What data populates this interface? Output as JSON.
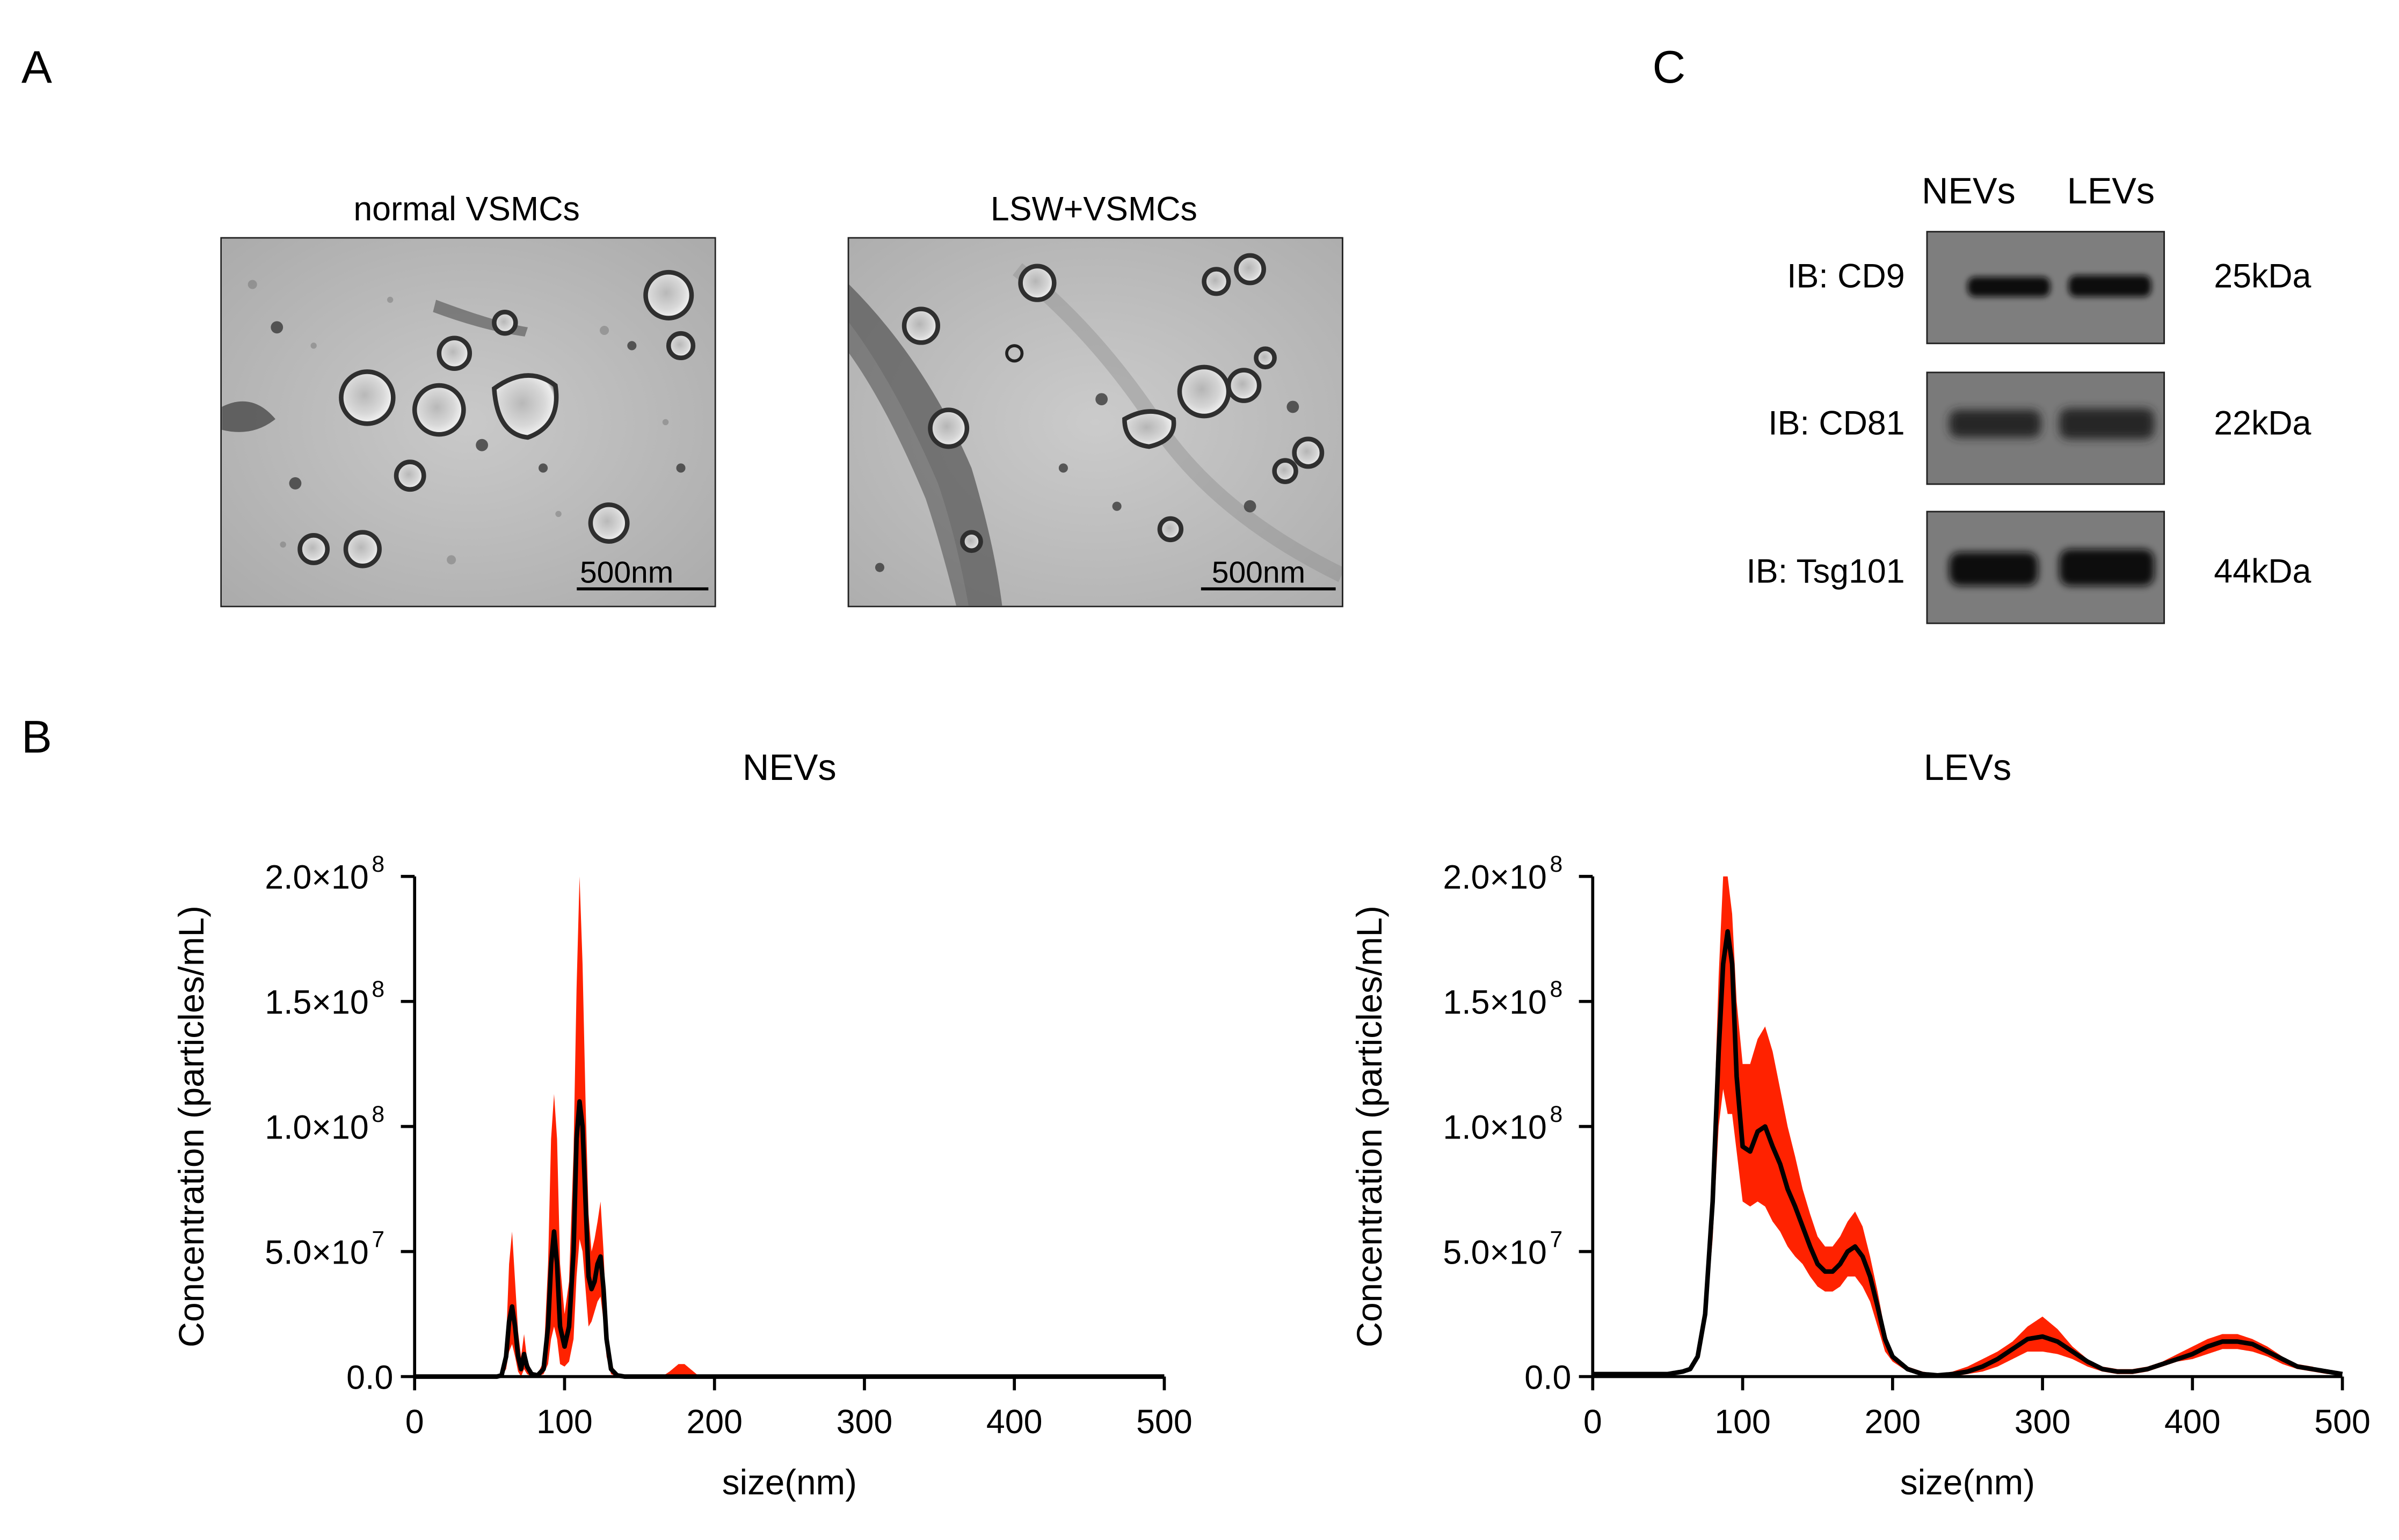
{
  "panels": {
    "a": "A",
    "b": "B",
    "c": "C"
  },
  "em": {
    "left_title": "normal VSMCs",
    "right_title": "LSW+VSMCs",
    "left_scale": "500nm",
    "right_scale": "500nm"
  },
  "western": {
    "columns": [
      "NEVs",
      "LEVs"
    ],
    "rows": [
      {
        "label": "IB: CD9",
        "kda": "25kDa"
      },
      {
        "label": "IB: CD81",
        "kda": "22kDa"
      },
      {
        "label": "IB: Tsg101",
        "kda": "44kDa"
      }
    ]
  },
  "colors": {
    "band": "#ff2200",
    "mean_line": "#000000",
    "blot_bg": "#7c7c7c"
  },
  "chart_data": [
    {
      "type": "line",
      "title": "NEVs",
      "xlabel": "size(nm)",
      "ylabel": "Concentration (particles/mL)",
      "xlim": [
        0,
        500
      ],
      "ylim": [
        0,
        200000000
      ],
      "xticks": [
        "0",
        "100",
        "200",
        "300",
        "400",
        "500"
      ],
      "yticks": [
        {
          "mant": "0.0",
          "exp": ""
        },
        {
          "mant": "5.0×10",
          "exp": "7"
        },
        {
          "mant": "1.0×10",
          "exp": "8"
        },
        {
          "mant": "1.5×10",
          "exp": "8"
        },
        {
          "mant": "2.0×10",
          "exp": "8"
        }
      ],
      "series": [
        {
          "name": "mean",
          "x": [
            0,
            55,
            58,
            61,
            63,
            65,
            67,
            69,
            71,
            73,
            75,
            78,
            82,
            86,
            89,
            91,
            93,
            95,
            97,
            100,
            103,
            106,
            108,
            110,
            112,
            114,
            116,
            118,
            120,
            122,
            124,
            126,
            128,
            131,
            135,
            140,
            170,
            180,
            190,
            200,
            300,
            400,
            500
          ],
          "values": [
            0,
            0,
            500000,
            8000000,
            22000000,
            28000000,
            20000000,
            8000000,
            3000000,
            9000000,
            4000000,
            1000000,
            500000,
            3000000,
            20000000,
            45000000,
            58000000,
            45000000,
            20000000,
            12000000,
            20000000,
            50000000,
            95000000,
            110000000,
            100000000,
            70000000,
            40000000,
            35000000,
            38000000,
            45000000,
            48000000,
            35000000,
            15000000,
            3000000,
            500000,
            0,
            0,
            0,
            0,
            0,
            0,
            0,
            0
          ]
        },
        {
          "name": "upper (±SD)",
          "x": [
            0,
            55,
            58,
            61,
            63,
            65,
            67,
            69,
            71,
            73,
            75,
            78,
            82,
            86,
            89,
            91,
            93,
            95,
            97,
            100,
            103,
            106,
            108,
            110,
            112,
            114,
            116,
            118,
            120,
            122,
            124,
            126,
            128,
            131,
            135,
            140,
            165,
            170,
            176,
            180,
            186,
            190,
            200,
            300,
            400,
            500
          ],
          "values": [
            0,
            0,
            1000000,
            14000000,
            45000000,
            58000000,
            38000000,
            18000000,
            8000000,
            17000000,
            7000000,
            2000000,
            1000000,
            6000000,
            45000000,
            95000000,
            113000000,
            95000000,
            45000000,
            25000000,
            38000000,
            90000000,
            155000000,
            200000000,
            165000000,
            110000000,
            65000000,
            50000000,
            55000000,
            62000000,
            70000000,
            50000000,
            22000000,
            5000000,
            1000000,
            0,
            0,
            2000000,
            5000000,
            5000000,
            2000000,
            0,
            0,
            0,
            0,
            0
          ]
        },
        {
          "name": "lower (±SD)",
          "x": [
            0,
            55,
            58,
            61,
            63,
            65,
            67,
            69,
            71,
            73,
            75,
            78,
            82,
            86,
            89,
            91,
            93,
            95,
            97,
            100,
            103,
            106,
            108,
            110,
            112,
            114,
            116,
            118,
            120,
            122,
            124,
            126,
            128,
            131,
            135,
            140,
            500
          ],
          "values": [
            0,
            0,
            0,
            3000000,
            10000000,
            13000000,
            8000000,
            2000000,
            0,
            3000000,
            1000000,
            0,
            0,
            1000000,
            5000000,
            15000000,
            20000000,
            15000000,
            5000000,
            4000000,
            6000000,
            15000000,
            40000000,
            55000000,
            50000000,
            35000000,
            20000000,
            22000000,
            26000000,
            30000000,
            32000000,
            22000000,
            8000000,
            1000000,
            0,
            0,
            0
          ]
        }
      ]
    },
    {
      "type": "line",
      "title": "LEVs",
      "xlabel": "size(nm)",
      "ylabel": "Concentration (particles/mL)",
      "xlim": [
        0,
        500
      ],
      "ylim": [
        0,
        200000000
      ],
      "xticks": [
        "0",
        "100",
        "200",
        "300",
        "400",
        "500"
      ],
      "yticks": [
        {
          "mant": "0.0",
          "exp": ""
        },
        {
          "mant": "5.0×10",
          "exp": "7"
        },
        {
          "mant": "1.0×10",
          "exp": "8"
        },
        {
          "mant": "1.5×10",
          "exp": "8"
        },
        {
          "mant": "2.0×10",
          "exp": "8"
        }
      ],
      "series": [
        {
          "name": "mean",
          "x": [
            0,
            50,
            60,
            65,
            70,
            75,
            80,
            84,
            87,
            90,
            93,
            96,
            100,
            105,
            110,
            115,
            120,
            125,
            130,
            135,
            140,
            145,
            150,
            155,
            160,
            165,
            170,
            175,
            180,
            185,
            190,
            195,
            200,
            210,
            220,
            230,
            240,
            250,
            260,
            270,
            280,
            290,
            300,
            310,
            320,
            330,
            340,
            350,
            360,
            370,
            380,
            390,
            400,
            410,
            420,
            430,
            440,
            450,
            460,
            470,
            480,
            490,
            500
          ],
          "values": [
            1000000,
            1000000,
            2000000,
            3000000,
            8000000,
            25000000,
            70000000,
            130000000,
            165000000,
            178000000,
            165000000,
            120000000,
            92000000,
            90000000,
            98000000,
            100000000,
            92000000,
            85000000,
            75000000,
            68000000,
            60000000,
            52000000,
            45000000,
            42000000,
            42000000,
            45000000,
            50000000,
            52000000,
            48000000,
            40000000,
            28000000,
            15000000,
            8000000,
            3000000,
            1000000,
            500000,
            1000000,
            2000000,
            4000000,
            7000000,
            11000000,
            15000000,
            16000000,
            14000000,
            10000000,
            6000000,
            3000000,
            2000000,
            2000000,
            3000000,
            5000000,
            7000000,
            9000000,
            12000000,
            14000000,
            14000000,
            13000000,
            10000000,
            7000000,
            4000000,
            3000000,
            2000000,
            1000000
          ]
        },
        {
          "name": "upper (±SD)",
          "x": [
            0,
            50,
            60,
            65,
            70,
            75,
            80,
            84,
            87,
            90,
            93,
            96,
            100,
            105,
            110,
            115,
            120,
            125,
            130,
            135,
            140,
            145,
            150,
            155,
            160,
            165,
            170,
            175,
            180,
            185,
            190,
            195,
            200,
            210,
            220,
            230,
            240,
            250,
            260,
            270,
            280,
            290,
            300,
            310,
            320,
            330,
            340,
            350,
            360,
            370,
            380,
            390,
            400,
            410,
            420,
            430,
            440,
            450,
            460,
            470,
            480,
            490,
            500
          ],
          "values": [
            1000000,
            1000000,
            2000000,
            3000000,
            9000000,
            30000000,
            85000000,
            160000000,
            200000000,
            200000000,
            185000000,
            150000000,
            125000000,
            125000000,
            135000000,
            140000000,
            130000000,
            115000000,
            100000000,
            88000000,
            75000000,
            65000000,
            56000000,
            52000000,
            52000000,
            56000000,
            62000000,
            66000000,
            60000000,
            48000000,
            34000000,
            18000000,
            9000000,
            4000000,
            2000000,
            1000000,
            2000000,
            4000000,
            7000000,
            10000000,
            14000000,
            20000000,
            24000000,
            19000000,
            12000000,
            7000000,
            4000000,
            3000000,
            3000000,
            4000000,
            6000000,
            9000000,
            12000000,
            15000000,
            17000000,
            17000000,
            15000000,
            12000000,
            8000000,
            5000000,
            4000000,
            2000000,
            1000000
          ]
        },
        {
          "name": "lower (±SD)",
          "x": [
            0,
            50,
            60,
            65,
            70,
            75,
            80,
            84,
            87,
            90,
            93,
            96,
            100,
            105,
            110,
            115,
            120,
            125,
            130,
            135,
            140,
            145,
            150,
            155,
            160,
            165,
            170,
            175,
            180,
            185,
            190,
            195,
            200,
            210,
            220,
            230,
            240,
            250,
            260,
            270,
            280,
            290,
            300,
            310,
            320,
            330,
            340,
            350,
            360,
            370,
            380,
            390,
            400,
            410,
            420,
            430,
            440,
            450,
            460,
            470,
            480,
            490,
            500
          ],
          "values": [
            1000000,
            1000000,
            2000000,
            3000000,
            7000000,
            20000000,
            55000000,
            100000000,
            115000000,
            105000000,
            105000000,
            90000000,
            70000000,
            68000000,
            70000000,
            68000000,
            62000000,
            58000000,
            52000000,
            48000000,
            45000000,
            40000000,
            36000000,
            34000000,
            34000000,
            36000000,
            40000000,
            40000000,
            36000000,
            30000000,
            20000000,
            10000000,
            6000000,
            2000000,
            500000,
            0,
            0,
            1000000,
            2000000,
            4000000,
            7000000,
            10000000,
            10000000,
            9000000,
            7000000,
            4000000,
            2000000,
            1000000,
            1000000,
            2000000,
            4000000,
            6000000,
            7000000,
            9000000,
            11000000,
            11000000,
            10000000,
            8000000,
            5000000,
            3000000,
            2000000,
            1000000,
            1000000
          ]
        }
      ]
    }
  ]
}
